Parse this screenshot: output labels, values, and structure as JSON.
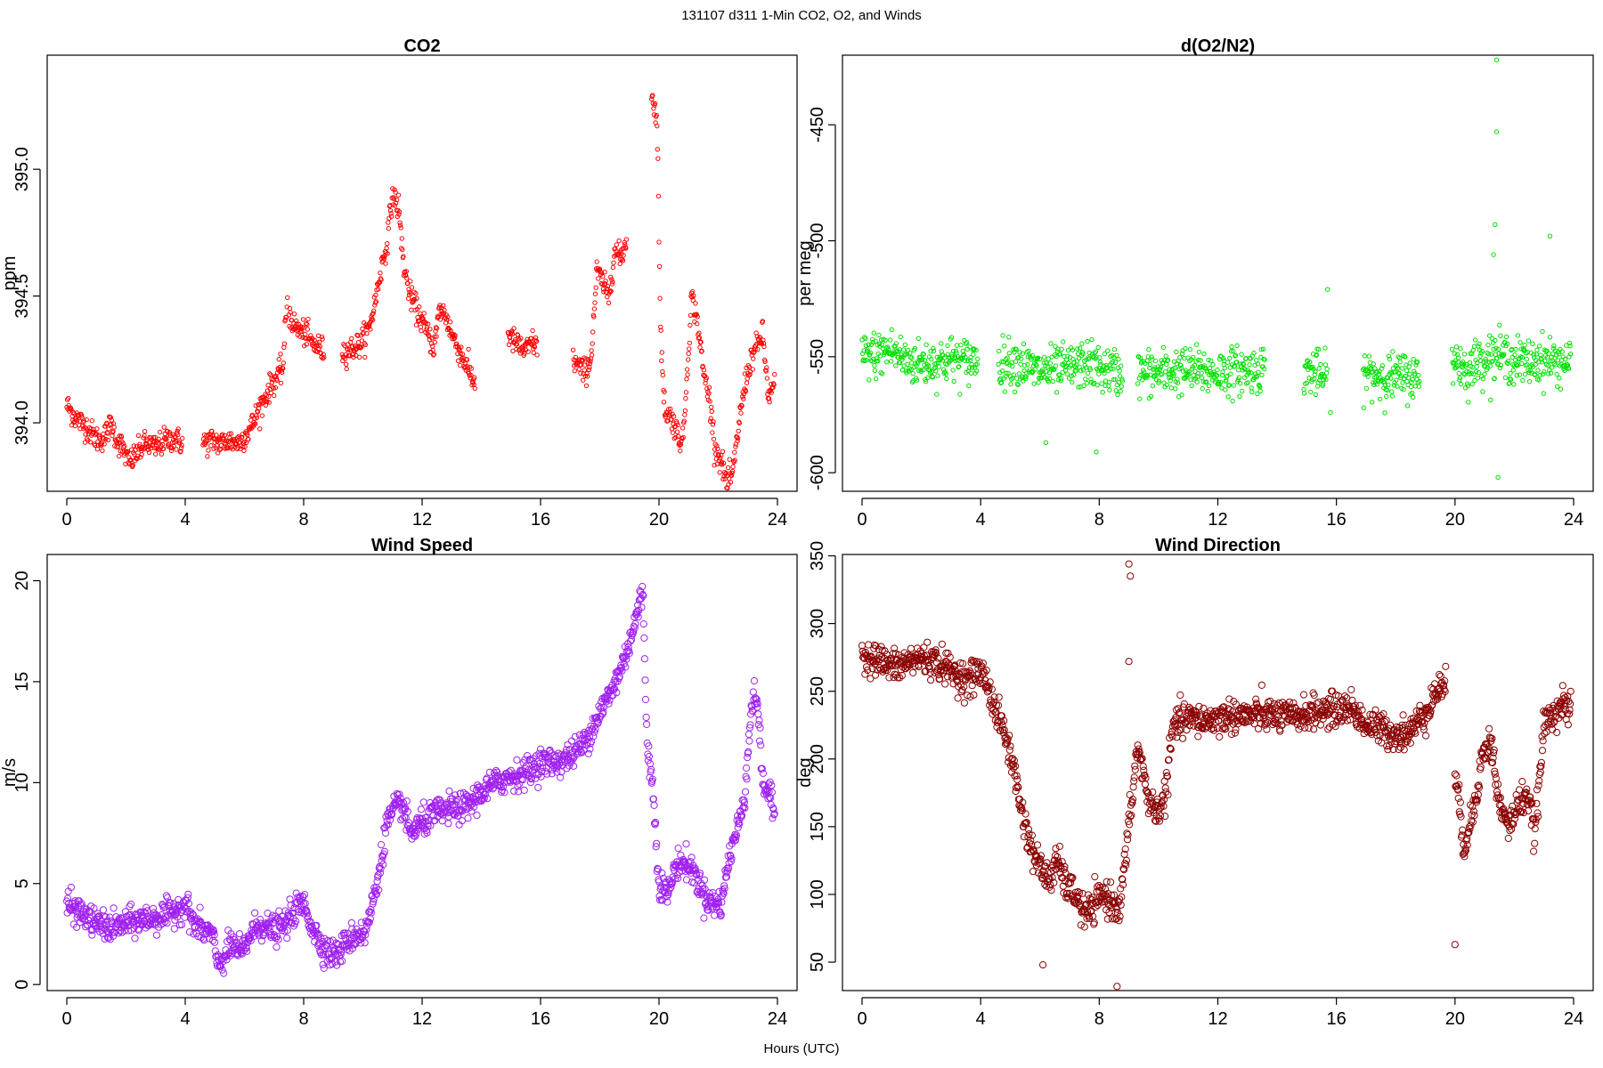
{
  "figure": {
    "suptitle": "131107   d311   1-Min CO2, O2, and Winds",
    "xlabel": "Hours (UTC)"
  },
  "chart_data": [
    {
      "id": "co2",
      "type": "scatter",
      "title": "CO2",
      "xlabel": "",
      "ylabel": "ppm",
      "xlim": [
        0,
        24
      ],
      "ylim": [
        393.73,
        395.45
      ],
      "xticks": [
        0,
        4,
        8,
        12,
        16,
        20,
        24
      ],
      "yticks": [
        394.0,
        394.5,
        395.0
      ],
      "ytick_labels": [
        "394.0",
        "394.5",
        "395.0"
      ],
      "color": "#ff0000",
      "marker_size": "small",
      "segments": [
        {
          "x": [
            0,
            0.3,
            0.5,
            0.7,
            0.9,
            1.1,
            1.3,
            1.5,
            1.7,
            1.9,
            2.1,
            2.3,
            2.5,
            2.7,
            3.0,
            3.3,
            3.6,
            3.9
          ],
          "y": [
            394.07,
            394.02,
            394.0,
            393.98,
            393.95,
            393.93,
            393.95,
            394.0,
            393.93,
            393.9,
            393.84,
            393.87,
            393.9,
            393.92,
            393.9,
            393.93,
            393.94,
            393.92
          ]
        },
        {
          "x": [
            4.6,
            4.9,
            5.2,
            5.5,
            5.8,
            6.1,
            6.3,
            6.5,
            6.7,
            6.9,
            7.1,
            7.3,
            7.45
          ],
          "y": [
            393.92,
            393.93,
            393.92,
            393.93,
            393.92,
            393.96,
            394.0,
            394.06,
            394.1,
            394.15,
            394.18,
            394.22,
            394.5
          ]
        },
        {
          "x": [
            7.5,
            7.7,
            7.9,
            8.1,
            8.3,
            8.5,
            8.7
          ],
          "y": [
            394.43,
            394.38,
            394.36,
            394.35,
            394.31,
            394.3,
            394.28
          ]
        },
        {
          "x": [
            9.3,
            9.6,
            9.9,
            10.2,
            10.4,
            10.6,
            10.8,
            11.0,
            11.2,
            11.4,
            11.6,
            11.8,
            12.0,
            12.2,
            12.4,
            12.6,
            12.8,
            13.0,
            13.2,
            13.4,
            13.6,
            13.8
          ],
          "y": [
            394.28,
            394.29,
            394.31,
            394.37,
            394.47,
            394.6,
            394.7,
            394.9,
            394.85,
            394.6,
            394.5,
            394.45,
            394.4,
            394.35,
            394.3,
            394.45,
            394.42,
            394.35,
            394.3,
            394.25,
            394.2,
            394.15
          ]
        },
        {
          "x": [
            14.9,
            15.1,
            15.3,
            15.5,
            15.7,
            15.9
          ],
          "y": [
            394.35,
            394.32,
            394.3,
            394.28,
            394.32,
            394.3
          ]
        },
        {
          "x": [
            17.1,
            17.3,
            17.5,
            17.7,
            17.9,
            18.1,
            18.3,
            18.5,
            18.7,
            18.9
          ],
          "y": [
            394.25,
            394.22,
            394.2,
            394.25,
            394.6,
            394.55,
            394.5,
            394.68,
            394.65,
            394.72
          ]
        },
        {
          "x": [
            19.75,
            19.85,
            19.95,
            20.05,
            20.2,
            20.35,
            20.5,
            20.65,
            20.8,
            20.95,
            21.1,
            21.3,
            21.5,
            21.7,
            21.9,
            22.1,
            22.3,
            22.5,
            22.7,
            22.9,
            23.1,
            23.3,
            23.5,
            23.7,
            23.9
          ],
          "y": [
            395.3,
            395.25,
            395.15,
            394.35,
            394.05,
            394.03,
            394.0,
            393.95,
            393.92,
            394.2,
            394.5,
            394.4,
            394.2,
            394.1,
            393.9,
            393.85,
            393.76,
            393.8,
            394.0,
            394.15,
            394.25,
            394.3,
            394.35,
            394.1,
            394.15
          ]
        }
      ],
      "spread": 0.05
    },
    {
      "id": "o2",
      "type": "scatter",
      "title": "d(O2/N2)",
      "xlabel": "",
      "ylabel": "per meg",
      "xlim": [
        0,
        24
      ],
      "ylim": [
        -608,
        -420
      ],
      "xticks": [
        0,
        4,
        8,
        12,
        16,
        20,
        24
      ],
      "yticks": [
        -600,
        -550,
        -500,
        -450
      ],
      "ytick_labels": [
        "-600",
        "-550",
        "-500",
        "-450"
      ],
      "color": "#00e000",
      "marker_size": "small",
      "segments": [
        {
          "x": [
            0,
            0.5,
            1.0,
            1.5,
            2.0,
            2.5,
            3.0,
            3.5,
            3.9
          ],
          "y": [
            -550,
            -549,
            -547,
            -552,
            -553,
            -552,
            -551,
            -552,
            -551
          ]
        },
        {
          "x": [
            4.6,
            5.2,
            5.8,
            6.4,
            7.0,
            7.6,
            8.2,
            8.8
          ],
          "y": [
            -553,
            -552,
            -556,
            -556,
            -555,
            -553,
            -556,
            -557
          ]
        },
        {
          "x": [
            9.3,
            10.0,
            10.6,
            11.2,
            11.8,
            12.4,
            13.0,
            13.6
          ],
          "y": [
            -557,
            -557,
            -556,
            -556,
            -557,
            -556,
            -556,
            -555
          ]
        },
        {
          "x": [
            14.9,
            15.3,
            15.7
          ],
          "y": [
            -556,
            -557,
            -560
          ]
        },
        {
          "x": [
            16.9,
            17.4,
            17.9,
            18.4,
            18.8
          ],
          "y": [
            -557,
            -558,
            -559,
            -558,
            -560
          ]
        },
        {
          "x": [
            19.9,
            20.4,
            20.9,
            21.4,
            21.9,
            22.4,
            22.9,
            23.4,
            23.9
          ],
          "y": [
            -550,
            -556,
            -551,
            -549,
            -551,
            -553,
            -551,
            -552,
            -552
          ]
        }
      ],
      "spread": 10,
      "outliers": [
        {
          "x": 21.4,
          "y": -422
        },
        {
          "x": 21.4,
          "y": -453
        },
        {
          "x": 21.35,
          "y": -493
        },
        {
          "x": 21.3,
          "y": -506
        },
        {
          "x": 21.45,
          "y": -602
        },
        {
          "x": 23.2,
          "y": -498
        },
        {
          "x": 6.2,
          "y": -587
        },
        {
          "x": 7.9,
          "y": -591
        },
        {
          "x": 15.7,
          "y": -521
        },
        {
          "x": 15.8,
          "y": -574
        }
      ]
    },
    {
      "id": "wspd",
      "type": "scatter",
      "title": "Wind Speed",
      "xlabel": "",
      "ylabel": "m/s",
      "xlim": [
        0,
        24
      ],
      "ylim": [
        -0.3,
        21.3
      ],
      "xticks": [
        0,
        4,
        8,
        12,
        16,
        20,
        24
      ],
      "yticks": [
        0,
        5,
        10,
        15,
        20
      ],
      "ytick_labels": [
        "0",
        "5",
        "10",
        "15",
        "20"
      ],
      "color": "#a020f0",
      "marker_size": "large",
      "segments": [
        {
          "x": [
            0,
            0.5,
            1.0,
            1.5,
            2.0,
            2.5,
            3.0,
            3.5,
            4.0,
            4.3,
            4.6,
            4.9,
            5.1,
            5.3,
            5.6,
            5.9,
            6.2,
            6.5,
            6.8,
            7.1,
            7.4,
            7.7,
            8.0,
            8.3,
            8.6,
            8.9,
            9.2,
            9.5,
            9.8,
            10.1,
            10.4,
            10.6,
            10.8,
            11.0,
            11.3,
            11.6,
            12.0,
            12.5,
            13.0,
            13.5,
            14.0,
            14.5,
            15.0,
            15.5,
            16.0,
            16.5,
            17.0,
            17.5,
            18.0,
            18.4,
            18.8,
            19.2,
            19.45,
            19.6,
            19.8,
            20.0,
            20.3,
            20.6,
            20.9,
            21.2,
            21.5,
            21.8,
            22.1,
            22.4,
            22.7,
            22.9,
            23.1,
            23.3,
            23.5,
            23.7,
            23.9
          ],
          "y": [
            4.0,
            3.5,
            3.0,
            2.8,
            3.0,
            3.2,
            3.3,
            3.5,
            4.0,
            3.0,
            2.7,
            2.5,
            1.0,
            1.3,
            2.0,
            1.5,
            2.5,
            3.0,
            2.8,
            2.7,
            3.0,
            3.7,
            4.0,
            2.8,
            2.0,
            1.5,
            1.6,
            2.2,
            2.5,
            2.6,
            4.5,
            6.0,
            8.0,
            8.5,
            9.0,
            7.5,
            8.0,
            8.5,
            8.7,
            8.8,
            9.5,
            10.0,
            10.3,
            10.5,
            11.0,
            11.0,
            11.3,
            12.0,
            13.5,
            14.5,
            16.0,
            18.0,
            19.5,
            12.0,
            9.5,
            5.0,
            4.5,
            6.0,
            6.0,
            5.5,
            4.5,
            4.0,
            4.0,
            6.5,
            8.0,
            9.5,
            13.5,
            14.5,
            10.0,
            9.5,
            8.5
          ]
        }
      ],
      "spread": 0.7
    },
    {
      "id": "wdir",
      "type": "scatter",
      "title": "Wind Direction",
      "xlabel": "",
      "ylabel": "deg",
      "xlim": [
        0,
        24
      ],
      "ylim": [
        29,
        351
      ],
      "xticks": [
        0,
        4,
        8,
        12,
        16,
        20,
        24
      ],
      "yticks": [
        50,
        100,
        150,
        200,
        250,
        300,
        350
      ],
      "ytick_labels": [
        "50",
        "100",
        "150",
        "200",
        "250",
        "300",
        "350"
      ],
      "color": "#8b0000",
      "marker_size": "large",
      "segments": [
        {
          "x": [
            0,
            0.4,
            0.8,
            1.2,
            1.6,
            2.0,
            2.4,
            2.8,
            3.2,
            3.6,
            3.9,
            4.2,
            4.5,
            4.8,
            5.1,
            5.4,
            5.7,
            6.0,
            6.3,
            6.6,
            6.9,
            7.2,
            7.5,
            7.8,
            8.1,
            8.4,
            8.7,
            9.0,
            9.3,
            9.6,
            9.9,
            10.2,
            10.5,
            11.0,
            11.5,
            12.0,
            12.5,
            13.0,
            13.5,
            14.0,
            14.5,
            15.0,
            15.5,
            16.0,
            16.5,
            17.0,
            17.5,
            18.0,
            18.5,
            19.0,
            19.4,
            19.7
          ],
          "y": [
            277,
            275,
            270,
            268,
            272,
            275,
            272,
            268,
            262,
            258,
            265,
            258,
            235,
            220,
            195,
            160,
            135,
            120,
            110,
            125,
            105,
            100,
            85,
            90,
            100,
            95,
            90,
            150,
            210,
            175,
            160,
            170,
            225,
            230,
            228,
            230,
            232,
            232,
            233,
            232,
            230,
            234,
            235,
            236,
            238,
            225,
            222,
            218,
            220,
            235,
            250,
            258
          ]
        },
        {
          "x": [
            20.0,
            20.3,
            20.6,
            20.9,
            21.2,
            21.5,
            21.8,
            22.1,
            22.4,
            22.7,
            23.0,
            23.3,
            23.6,
            23.9
          ],
          "y": [
            190,
            135,
            160,
            200,
            215,
            165,
            150,
            165,
            175,
            145,
            225,
            235,
            240,
            235
          ]
        }
      ],
      "spread": 12,
      "outliers": [
        {
          "x": 9.0,
          "y": 344
        },
        {
          "x": 9.05,
          "y": 335
        },
        {
          "x": 8.6,
          "y": 32
        },
        {
          "x": 6.1,
          "y": 48
        },
        {
          "x": 20.0,
          "y": 63
        },
        {
          "x": 9.0,
          "y": 272
        }
      ]
    }
  ]
}
